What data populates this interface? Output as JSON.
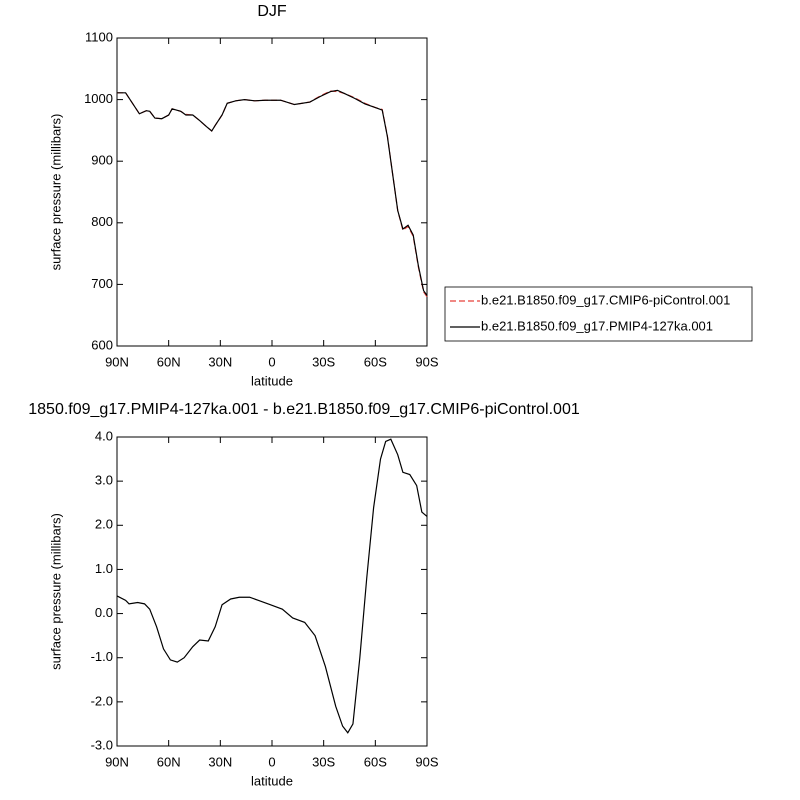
{
  "chart_data": [
    {
      "type": "line",
      "title": "DJF",
      "x_label": "latitude",
      "y_label": "surface pressure (millibars)",
      "x": [
        90,
        85,
        77,
        73,
        71,
        68,
        64,
        60,
        58,
        53,
        50,
        46,
        42,
        38,
        35,
        33,
        29,
        26,
        21,
        16,
        10,
        4,
        -5,
        -13,
        -22,
        -28,
        -34,
        -38,
        -42,
        -48,
        -54,
        -60,
        -64,
        -67,
        -70,
        -73,
        -76,
        -79,
        -82,
        -85,
        -88,
        -90
      ],
      "series": [
        {
          "name": "b.e21.B1850.f09_g17.CMIP6-piControl.001",
          "color": "#e8413b",
          "line_style": "dashed",
          "values": [
            1011,
            1011,
            977,
            982,
            981,
            970,
            969,
            975,
            985,
            981,
            976,
            975,
            966,
            956,
            949,
            958,
            975,
            994,
            998,
            1000,
            998,
            999,
            999,
            992,
            996,
            1006,
            1014,
            1013,
            1010,
            1003,
            994,
            987,
            984,
            941,
            880,
            820,
            788,
            794,
            778,
            728,
            688,
            680
          ]
        },
        {
          "name": "b.e21.B1850.f09_g17.PMIP4-127ka.001",
          "color": "#000000",
          "line_style": "solid",
          "values": [
            1011,
            1011,
            977,
            982,
            981,
            970,
            969,
            975,
            985,
            981,
            975,
            975,
            966,
            956,
            949,
            958,
            975,
            994,
            998,
            1000,
            998,
            999,
            999,
            992,
            996,
            1005,
            1013,
            1015,
            1010,
            1002,
            993,
            987,
            983,
            940,
            880,
            820,
            790,
            796,
            780,
            730,
            690,
            682
          ]
        }
      ],
      "xlim": [
        90,
        -90
      ],
      "xticks": [
        {
          "value": 90,
          "label": "90N"
        },
        {
          "value": 60,
          "label": "60N"
        },
        {
          "value": 30,
          "label": "30N"
        },
        0,
        {
          "value": -30,
          "label": "30S"
        },
        {
          "value": -60,
          "label": "60S"
        },
        {
          "value": -90,
          "label": "90S"
        }
      ],
      "ylim": [
        600,
        1100
      ],
      "yticks": [
        600,
        700,
        800,
        900,
        1000,
        1100
      ],
      "legend": "right"
    },
    {
      "type": "line",
      "title": "1850.f09_g17.PMIP4-127ka.001 - b.e21.B1850.f09_g17.CMIP6-piControl.001",
      "x_label": "latitude",
      "y_label": "surface pressure (millibars)",
      "x": [
        90,
        85,
        83,
        78,
        74,
        71,
        67,
        63,
        59,
        55,
        51,
        46,
        42,
        37,
        33,
        29,
        24,
        19,
        13,
        8,
        1,
        -6,
        -12,
        -19,
        -25,
        -31,
        -37,
        -41,
        -44,
        -47,
        -51,
        -55,
        -59,
        -63,
        -66,
        -69,
        -73,
        -76,
        -80,
        -84,
        -87,
        -90
      ],
      "values": [
        0.4,
        0.3,
        0.22,
        0.25,
        0.22,
        0.1,
        -0.3,
        -0.8,
        -1.05,
        -1.1,
        -1.0,
        -0.75,
        -0.6,
        -0.62,
        -0.3,
        0.2,
        0.33,
        0.37,
        0.37,
        0.3,
        0.2,
        0.1,
        -0.1,
        -0.2,
        -0.5,
        -1.2,
        -2.1,
        -2.55,
        -2.7,
        -2.5,
        -1.0,
        0.8,
        2.4,
        3.5,
        3.9,
        3.95,
        3.6,
        3.2,
        3.15,
        2.9,
        2.3,
        2.2
      ],
      "color": "#000000",
      "xlim": [
        90,
        -90
      ],
      "xticks": [
        {
          "value": 90,
          "label": "90N"
        },
        {
          "value": 60,
          "label": "60N"
        },
        {
          "value": 30,
          "label": "30N"
        },
        0,
        {
          "value": -30,
          "label": "30S"
        },
        {
          "value": -60,
          "label": "60S"
        },
        {
          "value": -90,
          "label": "90S"
        }
      ],
      "ylim": [
        -3,
        4
      ],
      "yticks": [
        {
          "value": -3,
          "label": "-3.0"
        },
        {
          "value": -2,
          "label": "-2.0"
        },
        {
          "value": -1,
          "label": "-1.0"
        },
        {
          "value": 0,
          "label": "0.0"
        },
        {
          "value": 1,
          "label": "1.0"
        },
        {
          "value": 2,
          "label": "2.0"
        },
        {
          "value": 3,
          "label": "3.0"
        },
        {
          "value": 4,
          "label": "4.0"
        }
      ]
    }
  ]
}
